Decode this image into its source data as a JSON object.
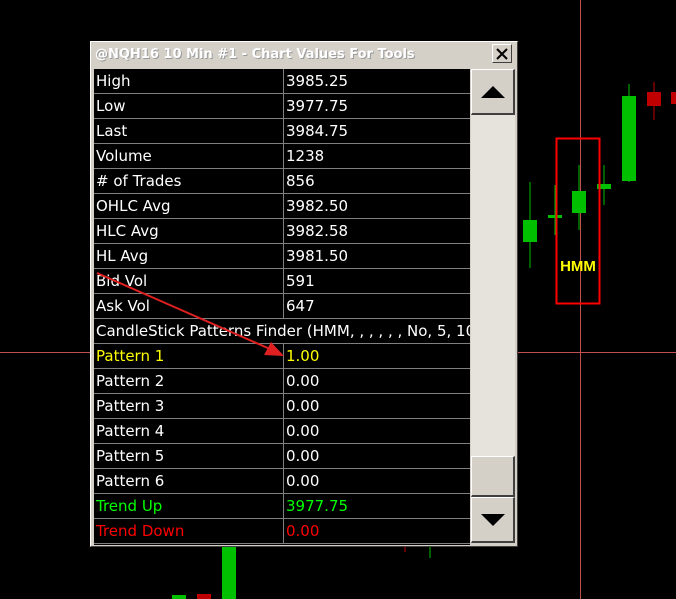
{
  "window": {
    "title": "@NQH16  10 Min   #1 - Chart Values For Tools",
    "close_label": "close"
  },
  "rows": [
    {
      "label": "High",
      "value": "3985.25",
      "color": "#ffffff"
    },
    {
      "label": "Low",
      "value": "3977.75",
      "color": "#ffffff"
    },
    {
      "label": "Last",
      "value": "3984.75",
      "color": "#ffffff"
    },
    {
      "label": "Volume",
      "value": "1238",
      "color": "#ffffff"
    },
    {
      "label": "# of Trades",
      "value": "856",
      "color": "#ffffff"
    },
    {
      "label": "OHLC Avg",
      "value": "3982.50",
      "color": "#ffffff"
    },
    {
      "label": "HLC Avg",
      "value": "3982.58",
      "color": "#ffffff"
    },
    {
      "label": "HL Avg",
      "value": "3981.50",
      "color": "#ffffff"
    },
    {
      "label": "Bid Vol",
      "value": "591",
      "color": "#ffffff"
    },
    {
      "label": "Ask Vol",
      "value": "647",
      "color": "#ffffff"
    }
  ],
  "study_header": "CandleStick Patterns Finder (HMM, , , , , , No, 5, 10",
  "study_rows": [
    {
      "label": "Pattern 1",
      "value": "1.00",
      "color": "#ffff00"
    },
    {
      "label": "Pattern 2",
      "value": "0.00",
      "color": "#ffffff"
    },
    {
      "label": "Pattern 3",
      "value": "0.00",
      "color": "#ffffff"
    },
    {
      "label": "Pattern 4",
      "value": "0.00",
      "color": "#ffffff"
    },
    {
      "label": "Pattern 5",
      "value": "0.00",
      "color": "#ffffff"
    },
    {
      "label": "Pattern 6",
      "value": "0.00",
      "color": "#ffffff"
    },
    {
      "label": "Trend Up",
      "value": "3977.75",
      "color": "#00ff00"
    },
    {
      "label": "Trend Down",
      "value": "0.00",
      "color": "#ff0000"
    }
  ],
  "chart": {
    "pattern_label": "HMM",
    "colors": {
      "up_candle": "#00c000",
      "down_candle": "#c00000",
      "crosshair": "#c05050",
      "highlight_box": "#ff0000",
      "arrow": "#e02020",
      "pattern_text": "#ffff00"
    }
  },
  "icons": {
    "close": "close-icon",
    "scroll_up": "up-arrow-icon",
    "scroll_down": "down-arrow-icon"
  }
}
